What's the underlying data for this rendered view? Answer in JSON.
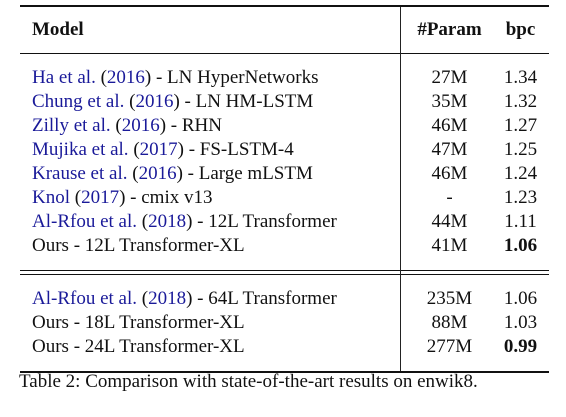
{
  "table": {
    "headers": {
      "model": "Model",
      "param": "#Param",
      "bpc": "bpc"
    },
    "group1": [
      {
        "author": "Ha et al.",
        "year": "2016",
        "rest": " - LN HyperNetworks",
        "param": "27M",
        "bpc": "1.34",
        "bold": false
      },
      {
        "author": "Chung et al.",
        "year": "2016",
        "rest": " - LN HM-LSTM",
        "param": "35M",
        "bpc": "1.32",
        "bold": false
      },
      {
        "author": "Zilly et al.",
        "year": "2016",
        "rest": " - RHN",
        "param": "46M",
        "bpc": "1.27",
        "bold": false
      },
      {
        "author": "Mujika et al.",
        "year": "2017",
        "rest": " - FS-LSTM-4",
        "param": "47M",
        "bpc": "1.25",
        "bold": false
      },
      {
        "author": "Krause et al.",
        "year": "2016",
        "rest": " - Large mLSTM",
        "param": "46M",
        "bpc": "1.24",
        "bold": false
      },
      {
        "author": "Knol",
        "year": "2017",
        "rest": " - cmix v13",
        "param": "-",
        "bpc": "1.23",
        "bold": false
      },
      {
        "author": "Al-Rfou et al.",
        "year": "2018",
        "rest": " - 12L Transformer",
        "param": "44M",
        "bpc": "1.11",
        "bold": false
      },
      {
        "author": "",
        "year": "",
        "rest": "Ours - 12L Transformer-XL",
        "param": "41M",
        "bpc": "1.06",
        "bold": true
      }
    ],
    "group2": [
      {
        "author": "Al-Rfou et al.",
        "year": "2018",
        "rest": " - 64L Transformer",
        "param": "235M",
        "bpc": "1.06",
        "bold": false
      },
      {
        "author": "",
        "year": "",
        "rest": "Ours - 18L Transformer-XL",
        "param": "88M",
        "bpc": "1.03",
        "bold": false
      },
      {
        "author": "",
        "year": "",
        "rest": "Ours - 24L Transformer-XL",
        "param": "277M",
        "bpc": "0.99",
        "bold": true
      }
    ]
  },
  "caption": {
    "label": "Table 2:",
    "text": " Comparison with state-of-the-art results on enwik8."
  },
  "colors": {
    "citation_link": "#1a1a99",
    "text": "#111111"
  }
}
